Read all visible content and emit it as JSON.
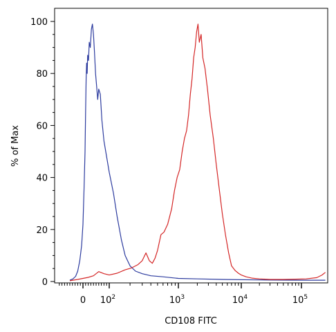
{
  "chart_data": {
    "type": "line",
    "title": "",
    "xlabel": "CD108 FITC",
    "ylabel": "% of Max",
    "x_scale": "biexponential",
    "xlim": [
      -50,
      250000
    ],
    "ylim": [
      0,
      100
    ],
    "grid": false,
    "legend": "none",
    "y_ticks": [
      {
        "value": 0,
        "label": "0"
      },
      {
        "value": 20,
        "label": "20"
      },
      {
        "value": 40,
        "label": "40"
      },
      {
        "value": 60,
        "label": "60"
      },
      {
        "value": 80,
        "label": "80"
      },
      {
        "value": 100,
        "label": "100"
      }
    ],
    "x_ticks": [
      {
        "value": 0,
        "base": "0",
        "exp": ""
      },
      {
        "value": 100,
        "base": "10",
        "exp": "2"
      },
      {
        "value": 1000,
        "base": "10",
        "exp": "3"
      },
      {
        "value": 10000,
        "base": "10",
        "exp": "4"
      },
      {
        "value": 100000,
        "base": "10",
        "exp": "5"
      }
    ],
    "series": [
      {
        "color": "#2b3a9e",
        "points": [
          [
            -50,
            0.5
          ],
          [
            -38,
            1
          ],
          [
            -28,
            2
          ],
          [
            -20,
            4
          ],
          [
            -12,
            8
          ],
          [
            -5,
            14
          ],
          [
            0,
            22
          ],
          [
            4,
            35
          ],
          [
            8,
            50
          ],
          [
            10,
            65
          ],
          [
            12,
            78
          ],
          [
            14,
            84
          ],
          [
            16,
            80
          ],
          [
            18,
            87
          ],
          [
            21,
            85
          ],
          [
            24,
            92
          ],
          [
            28,
            90
          ],
          [
            32,
            97
          ],
          [
            36,
            99
          ],
          [
            40,
            95
          ],
          [
            44,
            88
          ],
          [
            48,
            80
          ],
          [
            52,
            75
          ],
          [
            56,
            70
          ],
          [
            60,
            74
          ],
          [
            66,
            72
          ],
          [
            72,
            62
          ],
          [
            80,
            54
          ],
          [
            90,
            48
          ],
          [
            100,
            42
          ],
          [
            115,
            34
          ],
          [
            130,
            25
          ],
          [
            150,
            16
          ],
          [
            170,
            10
          ],
          [
            200,
            6
          ],
          [
            240,
            4
          ],
          [
            300,
            3
          ],
          [
            400,
            2.2
          ],
          [
            600,
            1.8
          ],
          [
            1000,
            1.2
          ],
          [
            2000,
            1.0
          ],
          [
            5000,
            0.8
          ],
          [
            20000,
            0.6
          ],
          [
            100000,
            0.5
          ],
          [
            250000,
            0.5
          ]
        ]
      },
      {
        "color": "#d42525",
        "points": [
          [
            -50,
            0.3
          ],
          [
            -20,
            0.8
          ],
          [
            0,
            1.2
          ],
          [
            20,
            1.6
          ],
          [
            40,
            2.2
          ],
          [
            60,
            3.8
          ],
          [
            80,
            3
          ],
          [
            100,
            2.5
          ],
          [
            130,
            3.2
          ],
          [
            170,
            4.5
          ],
          [
            210,
            5.2
          ],
          [
            260,
            6.5
          ],
          [
            300,
            8
          ],
          [
            340,
            11
          ],
          [
            380,
            8
          ],
          [
            420,
            7
          ],
          [
            460,
            9
          ],
          [
            500,
            12
          ],
          [
            560,
            18
          ],
          [
            620,
            19
          ],
          [
            700,
            22
          ],
          [
            800,
            28
          ],
          [
            880,
            35
          ],
          [
            960,
            40
          ],
          [
            1050,
            43
          ],
          [
            1150,
            50
          ],
          [
            1250,
            55
          ],
          [
            1350,
            58
          ],
          [
            1450,
            64
          ],
          [
            1550,
            72
          ],
          [
            1650,
            78
          ],
          [
            1750,
            86
          ],
          [
            1850,
            90
          ],
          [
            1950,
            96
          ],
          [
            2050,
            99
          ],
          [
            2150,
            92
          ],
          [
            2300,
            95
          ],
          [
            2450,
            86
          ],
          [
            2650,
            82
          ],
          [
            2900,
            74
          ],
          [
            3200,
            64
          ],
          [
            3600,
            55
          ],
          [
            4000,
            45
          ],
          [
            4500,
            35
          ],
          [
            5000,
            26
          ],
          [
            5600,
            18
          ],
          [
            6300,
            11
          ],
          [
            7000,
            6
          ],
          [
            8000,
            4.2
          ],
          [
            9000,
            3.2
          ],
          [
            10000,
            2.5
          ],
          [
            12000,
            1.8
          ],
          [
            15000,
            1.3
          ],
          [
            20000,
            1.0
          ],
          [
            30000,
            0.8
          ],
          [
            50000,
            0.8
          ],
          [
            80000,
            0.9
          ],
          [
            120000,
            1.0
          ],
          [
            180000,
            1.5
          ],
          [
            220000,
            2.5
          ],
          [
            250000,
            3.5
          ]
        ]
      }
    ]
  }
}
